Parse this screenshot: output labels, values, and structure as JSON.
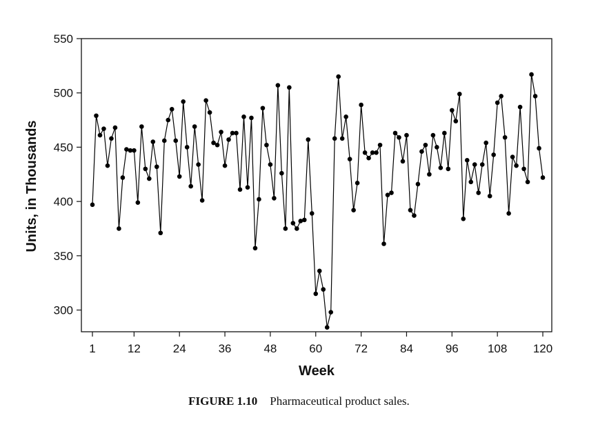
{
  "caption": {
    "label": "FIGURE 1.10",
    "text": "Pharmaceutical product sales."
  },
  "chart_data": {
    "type": "line",
    "title": "",
    "xlabel": "Week",
    "ylabel": "Units, in Thousands",
    "xlim": [
      1,
      120
    ],
    "ylim": [
      280,
      550
    ],
    "xticks": [
      1,
      12,
      24,
      36,
      48,
      60,
      72,
      84,
      96,
      108,
      120
    ],
    "yticks": [
      300,
      350,
      400,
      450,
      500,
      550
    ],
    "grid": false,
    "markers": true,
    "line_color": "#000000",
    "marker_color": "#000000",
    "x": [
      1,
      2,
      3,
      4,
      5,
      6,
      7,
      8,
      9,
      10,
      11,
      12,
      13,
      14,
      15,
      16,
      17,
      18,
      19,
      20,
      21,
      22,
      23,
      24,
      25,
      26,
      27,
      28,
      29,
      30,
      31,
      32,
      33,
      34,
      35,
      36,
      37,
      38,
      39,
      40,
      41,
      42,
      43,
      44,
      45,
      46,
      47,
      48,
      49,
      50,
      51,
      52,
      53,
      54,
      55,
      56,
      57,
      58,
      59,
      60,
      61,
      62,
      63,
      64,
      65,
      66,
      67,
      68,
      69,
      70,
      71,
      72,
      73,
      74,
      75,
      76,
      77,
      78,
      79,
      80,
      81,
      82,
      83,
      84,
      85,
      86,
      87,
      88,
      89,
      90,
      91,
      92,
      93,
      94,
      95,
      96,
      97,
      98,
      99,
      100,
      101,
      102,
      103,
      104,
      105,
      106,
      107,
      108,
      109,
      110,
      111,
      112,
      113,
      114,
      115,
      116,
      117,
      118,
      119,
      120
    ],
    "values": [
      397,
      479,
      461,
      467,
      433,
      458,
      468,
      375,
      422,
      448,
      447,
      447,
      399,
      469,
      430,
      421,
      455,
      432,
      371,
      456,
      475,
      485,
      456,
      423,
      492,
      450,
      414,
      469,
      434,
      401,
      493,
      482,
      454,
      452,
      464,
      433,
      457,
      463,
      463,
      411,
      478,
      413,
      477,
      357,
      402,
      486,
      452,
      434,
      403,
      507,
      426,
      375,
      505,
      380,
      375,
      382,
      383,
      457,
      389,
      315,
      336,
      319,
      284,
      298,
      458,
      515,
      458,
      478,
      439,
      392,
      417,
      489,
      445,
      440,
      445,
      445,
      452,
      361,
      406,
      408,
      463,
      459,
      437,
      461,
      392,
      387,
      416,
      446,
      452,
      425,
      461,
      450,
      431,
      463,
      430,
      484,
      474,
      499,
      384,
      438,
      418,
      434,
      408,
      434,
      454,
      405,
      443,
      491,
      497,
      459,
      389,
      441,
      433,
      487,
      430,
      418,
      517,
      497,
      449,
      422
    ]
  }
}
